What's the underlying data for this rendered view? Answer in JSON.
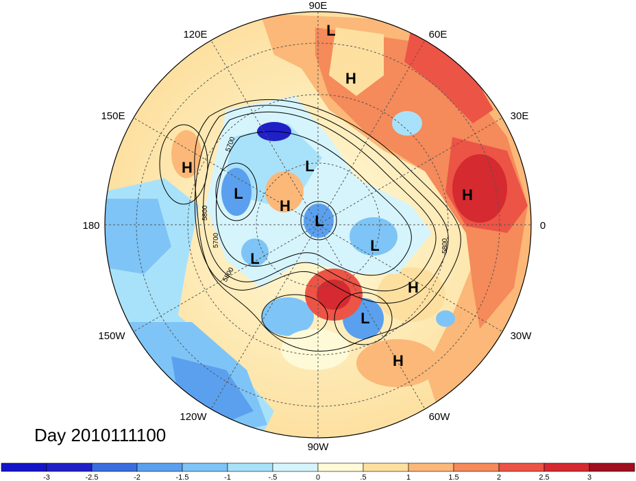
{
  "title": "Day 2010111100",
  "longitude_labels": [
    "90E",
    "60E",
    "30E",
    "0",
    "30W",
    "60W",
    "90W",
    "120W",
    "150W",
    "180",
    "150E",
    "120E"
  ],
  "contour_labels": [
    "5700",
    "5800",
    "5700",
    "5800",
    "5800"
  ],
  "pressure_centers": [
    {
      "label": "L"
    },
    {
      "label": "H"
    },
    {
      "label": "H"
    },
    {
      "label": "L"
    },
    {
      "label": "L"
    },
    {
      "label": "H"
    },
    {
      "label": "H"
    },
    {
      "label": "L"
    },
    {
      "label": "L"
    },
    {
      "label": "L"
    },
    {
      "label": "H"
    },
    {
      "label": "L"
    },
    {
      "label": "H"
    }
  ],
  "colorbar": {
    "ticks": [
      "-3",
      "-2.5",
      "-2",
      "-1.5",
      "-1",
      "-.5",
      "0",
      ".5",
      "1",
      "1.5",
      "2",
      "2.5",
      "3"
    ],
    "colors": [
      "#2020c8",
      "#3a6ee0",
      "#5aa0ee",
      "#7ec4f6",
      "#a8e2fa",
      "#d6f4fc",
      "#fefad8",
      "#fde0a0",
      "#fbb878",
      "#f58a5a",
      "#ec5446",
      "#d42a30",
      "#a01020"
    ]
  }
}
